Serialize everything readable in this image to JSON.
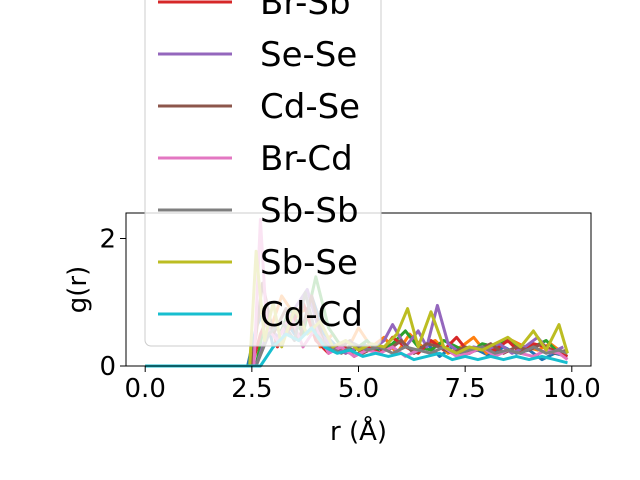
{
  "chart_data": {
    "type": "line",
    "title": "",
    "xlabel": "r (Å)",
    "ylabel": "g(r)",
    "xlim": [
      -0.45,
      10.45
    ],
    "ylim": [
      0,
      2.4
    ],
    "x_ticks": [
      0.0,
      2.5,
      5.0,
      7.5,
      10.0
    ],
    "x_tick_labels": [
      "0.0",
      "2.5",
      "5.0",
      "7.5",
      "10.0"
    ],
    "y_ticks": [
      0,
      2
    ],
    "y_tick_labels": [
      "0",
      "2"
    ],
    "grid": false,
    "legend_position": "top-left, overflowing above plot",
    "series": [
      {
        "name": "",
        "color": "#1f77b4",
        "x": [
          0,
          2.4,
          2.6,
          2.8,
          3.0,
          3.3,
          3.6,
          3.9,
          4.2,
          4.5,
          4.8,
          5.1,
          5.4,
          5.7,
          6.0,
          6.3,
          6.6,
          6.9,
          7.2,
          7.5,
          7.8,
          8.1,
          8.4,
          8.7,
          9.0,
          9.3,
          9.6,
          9.9
        ],
        "y": [
          0,
          0,
          0.6,
          0.9,
          0.3,
          0.7,
          0.4,
          1.1,
          0.5,
          0.3,
          0.2,
          0.35,
          0.25,
          0.3,
          0.4,
          0.2,
          0.35,
          0.15,
          0.3,
          0.2,
          0.25,
          0.15,
          0.3,
          0.2,
          0.25,
          0.1,
          0.2,
          0.15
        ]
      },
      {
        "name": "",
        "color": "#ff7f0e",
        "x": [
          0,
          2.5,
          2.7,
          2.9,
          3.2,
          3.5,
          3.8,
          4.1,
          4.4,
          4.7,
          5.0,
          5.3,
          5.6,
          5.9,
          6.2,
          6.5,
          6.8,
          7.1,
          7.4,
          7.7,
          8.0,
          8.3,
          8.6,
          8.9,
          9.2,
          9.5,
          9.8
        ],
        "y": [
          0,
          0,
          1.0,
          0.5,
          1.1,
          0.8,
          0.9,
          0.3,
          0.5,
          0.2,
          0.6,
          0.3,
          0.45,
          0.2,
          0.5,
          0.3,
          0.4,
          0.2,
          0.3,
          0.45,
          0.2,
          0.35,
          0.4,
          0.3,
          0.25,
          0.35,
          0.2
        ]
      },
      {
        "name": "",
        "color": "#2ca02c",
        "x": [
          0,
          2.6,
          2.8,
          3.1,
          3.4,
          3.7,
          4.0,
          4.3,
          4.6,
          4.9,
          5.2,
          5.5,
          5.8,
          6.1,
          6.4,
          6.7,
          7.0,
          7.3,
          7.6,
          7.9,
          8.2,
          8.5,
          8.8,
          9.1,
          9.4,
          9.7,
          9.9
        ],
        "y": [
          0,
          0,
          0.7,
          0.4,
          0.9,
          0.5,
          1.4,
          0.6,
          0.3,
          0.25,
          0.4,
          0.2,
          0.35,
          0.55,
          0.3,
          0.25,
          0.4,
          0.3,
          0.2,
          0.35,
          0.3,
          0.4,
          0.25,
          0.3,
          0.4,
          0.2,
          0.25
        ]
      },
      {
        "name": "Br-Sb",
        "color": "#d62728",
        "x": [
          0,
          2.5,
          2.7,
          2.9,
          3.1,
          3.4,
          3.7,
          4.0,
          4.3,
          4.6,
          4.9,
          5.2,
          5.5,
          5.8,
          6.1,
          6.4,
          6.7,
          7.0,
          7.3,
          7.6,
          7.9,
          8.2,
          8.5,
          8.8,
          9.1,
          9.4,
          9.7,
          9.9
        ],
        "y": [
          0,
          0,
          0.5,
          0.8,
          0.3,
          0.6,
          1.0,
          0.4,
          0.2,
          0.35,
          0.15,
          0.3,
          0.2,
          0.45,
          0.3,
          0.2,
          0.4,
          0.25,
          0.45,
          0.2,
          0.3,
          0.25,
          0.4,
          0.2,
          0.35,
          0.3,
          0.2,
          0.15
        ]
      },
      {
        "name": "Se-Se",
        "color": "#9467bd",
        "x": [
          0,
          2.6,
          2.9,
          3.2,
          3.5,
          3.8,
          4.1,
          4.4,
          4.7,
          5.0,
          5.3,
          5.6,
          5.8,
          6.1,
          6.4,
          6.6,
          6.85,
          7.1,
          7.4,
          7.7,
          8.0,
          8.3,
          8.6,
          8.9,
          9.2,
          9.5,
          9.8
        ],
        "y": [
          0,
          0,
          0.6,
          0.4,
          0.9,
          1.2,
          0.5,
          0.3,
          0.2,
          0.3,
          0.25,
          0.4,
          0.65,
          0.3,
          0.55,
          0.3,
          0.95,
          0.35,
          0.2,
          0.3,
          0.25,
          0.35,
          0.2,
          0.3,
          0.45,
          0.2,
          0.3
        ]
      },
      {
        "name": "Cd-Se",
        "color": "#8c564b",
        "x": [
          0,
          2.5,
          2.75,
          3.0,
          3.3,
          3.6,
          3.9,
          4.2,
          4.5,
          4.8,
          5.1,
          5.4,
          5.7,
          6.0,
          6.3,
          6.6,
          6.9,
          7.2,
          7.5,
          7.8,
          8.1,
          8.4,
          8.7,
          9.0,
          9.3,
          9.6,
          9.9
        ],
        "y": [
          0,
          0,
          1.3,
          0.5,
          0.9,
          0.4,
          1.1,
          0.3,
          0.25,
          0.4,
          0.2,
          0.3,
          0.25,
          0.4,
          0.2,
          0.35,
          0.3,
          0.2,
          0.3,
          0.25,
          0.35,
          0.2,
          0.3,
          0.25,
          0.35,
          0.2,
          0.25
        ]
      },
      {
        "name": "Br-Cd",
        "color": "#e377c2",
        "x": [
          0,
          2.55,
          2.7,
          2.85,
          3.1,
          3.4,
          3.7,
          4.0,
          4.3,
          4.6,
          4.9,
          5.2,
          5.5,
          5.8,
          6.1,
          6.4,
          6.7,
          7.0,
          7.3,
          7.6,
          7.9,
          8.2,
          8.5,
          8.8,
          9.1,
          9.4,
          9.7,
          9.9
        ],
        "y": [
          0,
          0,
          2.3,
          0.6,
          0.4,
          0.8,
          0.3,
          0.6,
          0.2,
          0.3,
          0.15,
          0.25,
          0.2,
          0.3,
          0.15,
          0.25,
          0.2,
          0.3,
          0.15,
          0.2,
          0.3,
          0.15,
          0.25,
          0.2,
          0.15,
          0.25,
          0.2,
          0.1
        ]
      },
      {
        "name": "Sb-Sb",
        "color": "#7f7f7f",
        "x": [
          0,
          2.6,
          2.9,
          3.2,
          3.5,
          3.75,
          4.0,
          4.3,
          4.6,
          4.9,
          5.2,
          5.5,
          5.8,
          6.1,
          6.4,
          6.7,
          7.0,
          7.3,
          7.6,
          7.9,
          8.2,
          8.5,
          8.8,
          9.1,
          9.4,
          9.7,
          9.9
        ],
        "y": [
          0,
          0,
          0.5,
          0.7,
          0.4,
          1.15,
          0.5,
          0.3,
          0.2,
          0.35,
          0.25,
          0.3,
          0.2,
          0.3,
          0.25,
          0.2,
          0.3,
          0.2,
          0.25,
          0.3,
          0.2,
          0.25,
          0.2,
          0.3,
          0.2,
          0.25,
          0.2
        ]
      },
      {
        "name": "Sb-Se",
        "color": "#bcbd22",
        "x": [
          0,
          2.45,
          2.6,
          2.8,
          3.0,
          3.2,
          3.5,
          3.8,
          4.1,
          4.4,
          4.7,
          5.0,
          5.3,
          5.6,
          5.9,
          6.15,
          6.4,
          6.7,
          7.0,
          7.3,
          7.6,
          7.9,
          8.2,
          8.5,
          8.8,
          9.1,
          9.4,
          9.7,
          9.9
        ],
        "y": [
          0,
          0,
          1.8,
          0.4,
          1.0,
          0.3,
          0.9,
          0.5,
          0.7,
          0.3,
          0.4,
          0.25,
          0.35,
          0.3,
          0.5,
          0.9,
          0.3,
          0.85,
          0.3,
          0.2,
          0.3,
          0.25,
          0.35,
          0.45,
          0.3,
          0.55,
          0.25,
          0.65,
          0.2
        ]
      },
      {
        "name": "Cd-Cd",
        "color": "#17becf",
        "x": [
          0,
          2.7,
          3.0,
          3.3,
          3.6,
          3.9,
          4.2,
          4.5,
          4.8,
          5.1,
          5.4,
          5.7,
          6.0,
          6.3,
          6.6,
          6.9,
          7.2,
          7.5,
          7.8,
          8.1,
          8.4,
          8.7,
          9.0,
          9.3,
          9.6,
          9.9
        ],
        "y": [
          0,
          0,
          0.3,
          0.5,
          0.4,
          0.6,
          0.3,
          0.2,
          0.25,
          0.15,
          0.2,
          0.15,
          0.2,
          0.1,
          0.15,
          0.2,
          0.1,
          0.15,
          0.1,
          0.15,
          0.1,
          0.15,
          0.1,
          0.15,
          0.1,
          0.05
        ]
      }
    ]
  }
}
